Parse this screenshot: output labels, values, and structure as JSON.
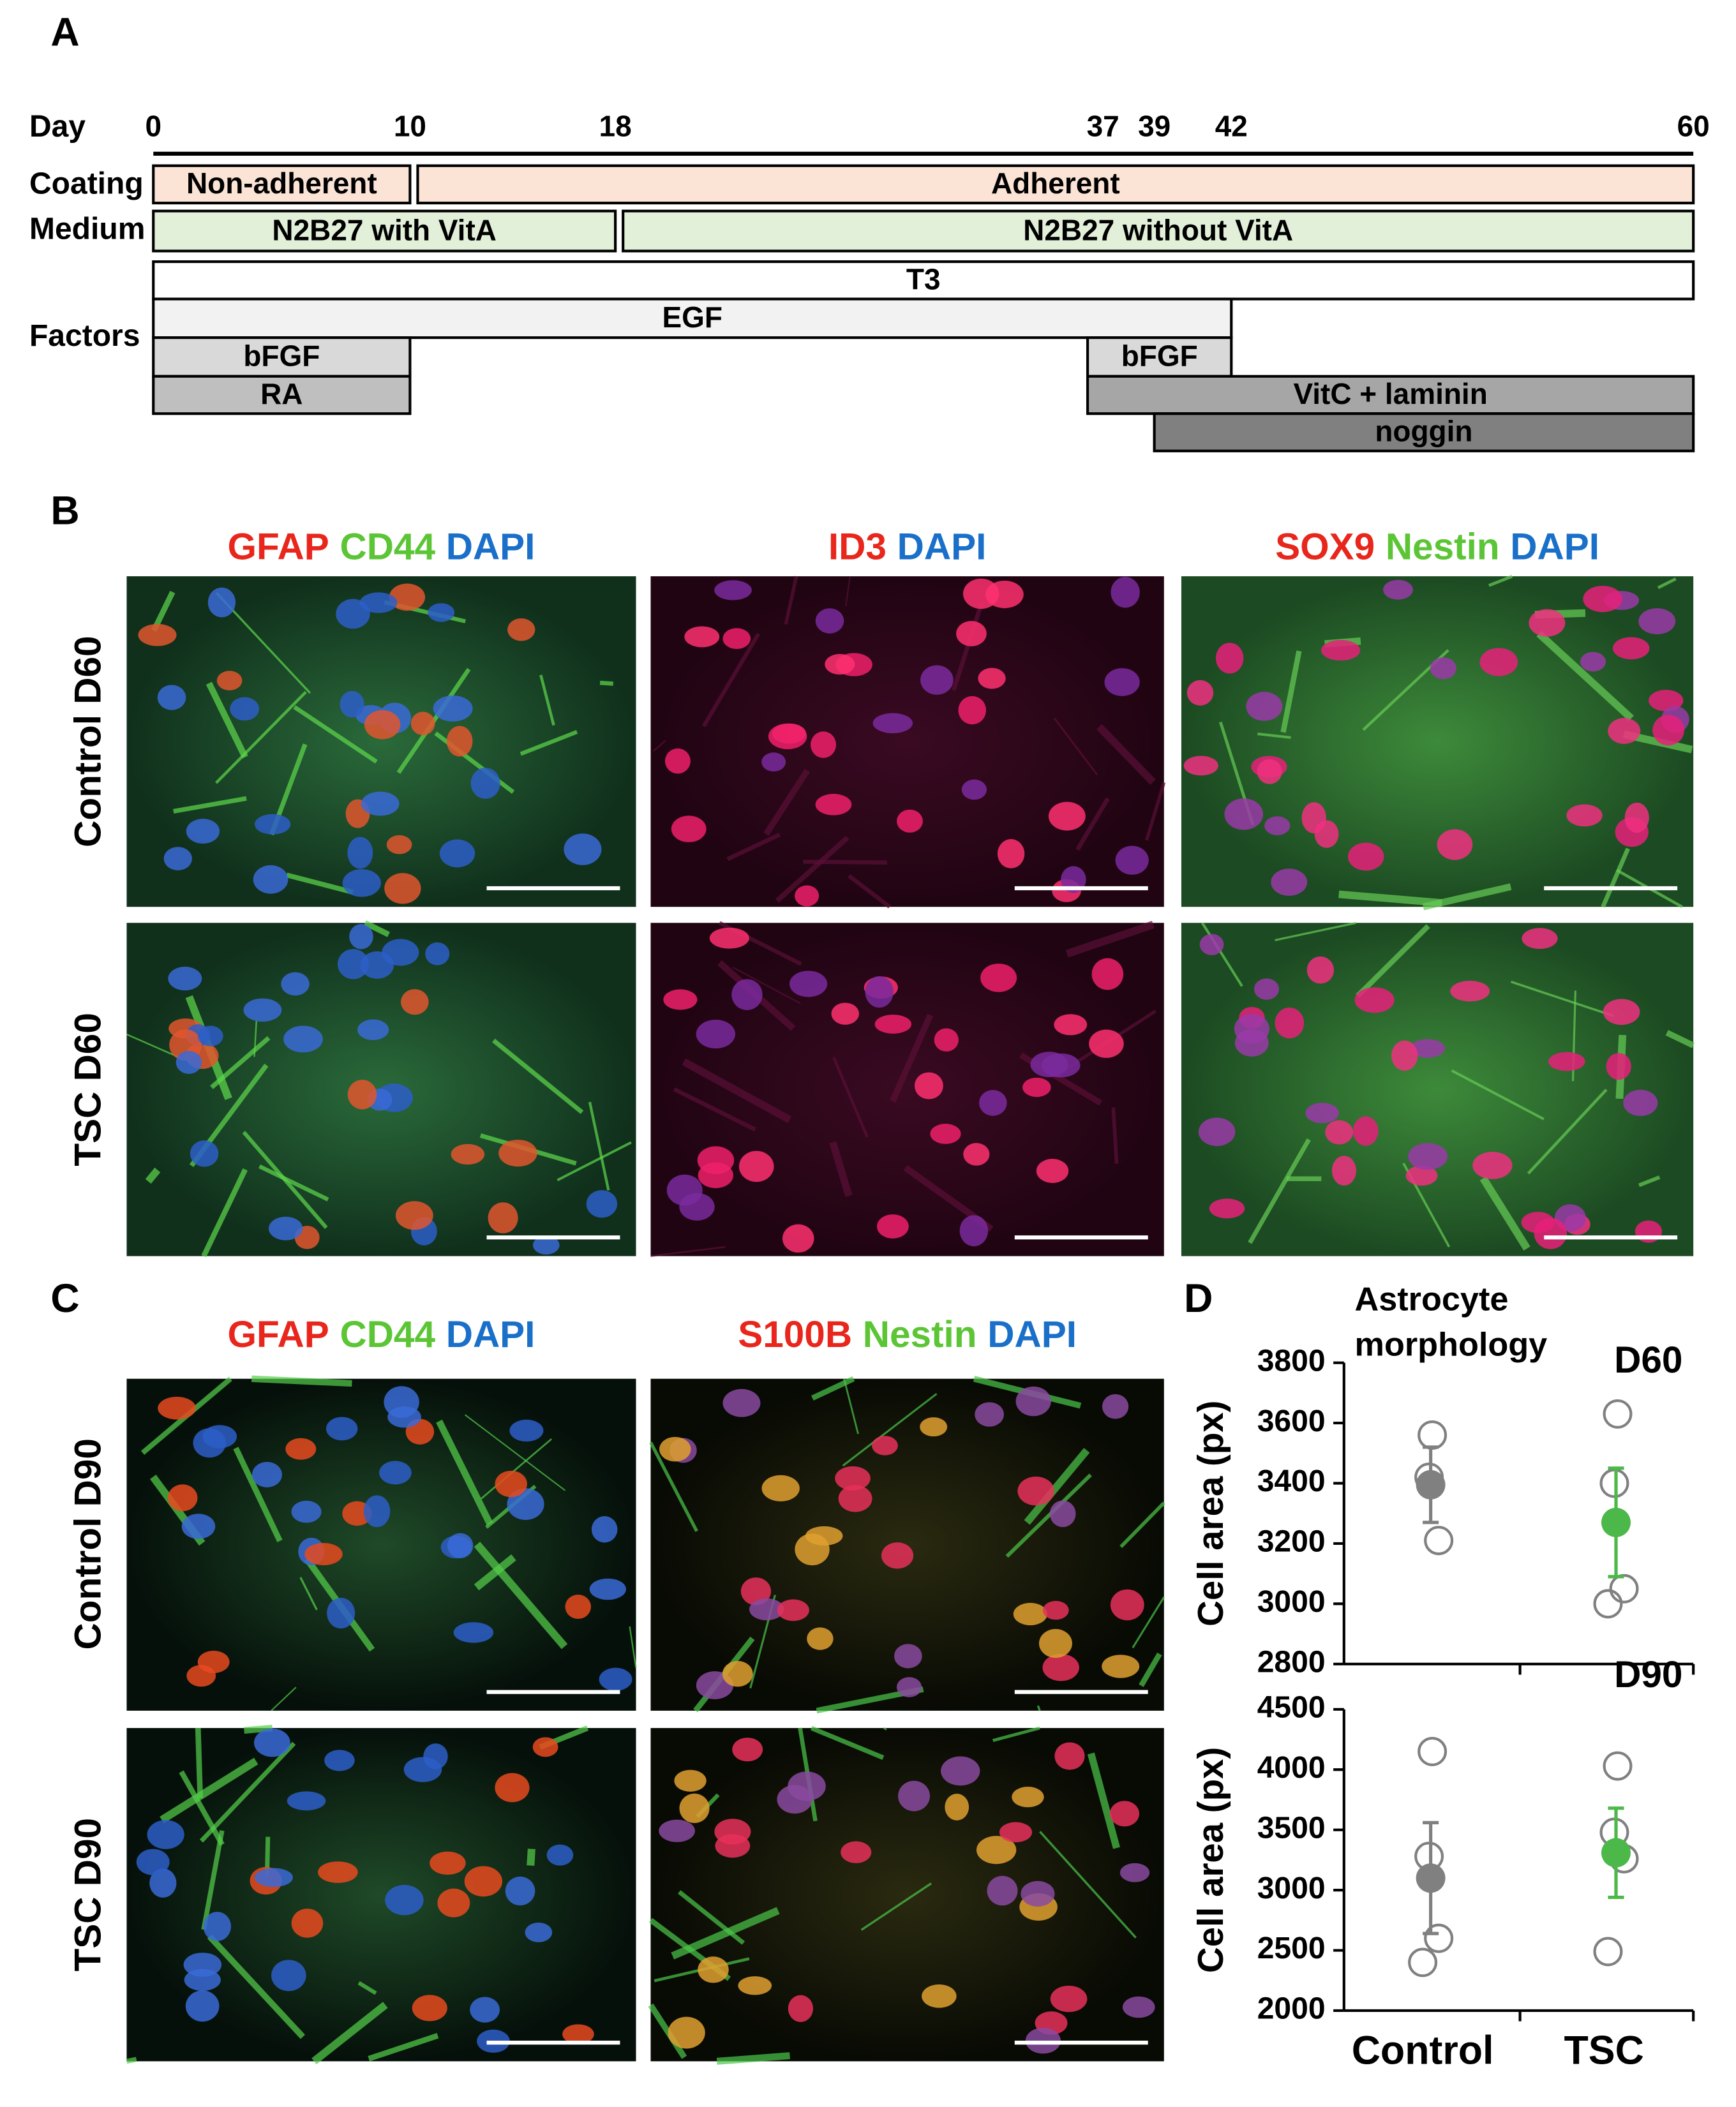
{
  "panel_a": {
    "label": "A",
    "day_label": "Day",
    "days": [
      0,
      10,
      18,
      37,
      39,
      42,
      60
    ],
    "xlim": [
      0,
      60
    ],
    "row_labels": {
      "coating": "Coating",
      "medium": "Medium",
      "factors": "Factors"
    },
    "bars": [
      {
        "text": "Non-adherent",
        "start": 0,
        "end": 10,
        "lane": 0,
        "color": "#fbe3d6"
      },
      {
        "text": "Adherent",
        "start": 10.3,
        "end": 60,
        "lane": 0,
        "color": "#fbe3d6"
      },
      {
        "text": "N2B27 with VitA",
        "start": 0,
        "end": 18,
        "lane": 1,
        "color": "#e2f0d9"
      },
      {
        "text": "N2B27 without VitA",
        "start": 18.3,
        "end": 60,
        "lane": 1,
        "color": "#e2f0d9"
      },
      {
        "text": "T3",
        "start": 0,
        "end": 60,
        "lane": 2,
        "color": "#ffffff"
      },
      {
        "text": "EGF",
        "start": 0,
        "end": 42,
        "lane": 3,
        "color": "#f2f2f2"
      },
      {
        "text": "bFGF",
        "start": 0,
        "end": 10,
        "lane": 4,
        "color": "#d9d9d9"
      },
      {
        "text": "bFGF",
        "start": 36.4,
        "end": 42,
        "lane": 4,
        "color": "#d9d9d9"
      },
      {
        "text": "RA",
        "start": 0,
        "end": 10,
        "lane": 5,
        "color": "#bfbfbf"
      },
      {
        "text": "VitC + laminin",
        "start": 36.4,
        "end": 60,
        "lane": 5,
        "color": "#a6a6a6"
      },
      {
        "text": "noggin",
        "start": 39,
        "end": 60,
        "lane": 6,
        "color": "#808080"
      }
    ]
  },
  "panel_b": {
    "label": "B",
    "columns": [
      [
        {
          "text": "GFAP",
          "color": "#e8261c"
        },
        {
          "text": "CD44",
          "color": "#5cc536"
        },
        {
          "text": "DAPI",
          "color": "#1a6fc9"
        }
      ],
      [
        {
          "text": "ID3",
          "color": "#e8261c"
        },
        {
          "text": "DAPI",
          "color": "#1a6fc9"
        }
      ],
      [
        {
          "text": "SOX9",
          "color": "#e8261c"
        },
        {
          "text": "Nestin",
          "color": "#5cc536"
        },
        {
          "text": "DAPI",
          "color": "#1a6fc9"
        }
      ]
    ],
    "rows": [
      "Control D60",
      "TSC D60"
    ]
  },
  "panel_c": {
    "label": "C",
    "columns": [
      [
        {
          "text": "GFAP",
          "color": "#e8261c"
        },
        {
          "text": "CD44",
          "color": "#5cc536"
        },
        {
          "text": "DAPI",
          "color": "#1a6fc9"
        }
      ],
      [
        {
          "text": "S100B",
          "color": "#e8261c"
        },
        {
          "text": "Nestin",
          "color": "#5cc536"
        },
        {
          "text": "DAPI",
          "color": "#1a6fc9"
        }
      ]
    ],
    "rows": [
      "Control D90",
      "TSC D90"
    ]
  },
  "panel_d": {
    "label": "D",
    "title_lines": [
      "Astrocyte",
      "morphology"
    ],
    "categories": [
      "Control",
      "TSC"
    ],
    "charts": [
      {
        "type": "scatter",
        "tag": "D60",
        "y_label": "Cell area (px)",
        "ylim": [
          2800,
          3800
        ],
        "yticks": [
          2800,
          3000,
          3200,
          3400,
          3600,
          3800
        ],
        "groups": [
          {
            "points": [
              3560,
              3420,
              3210
            ],
            "mean": 3395,
            "error": 125,
            "color": "#808080"
          },
          {
            "points": [
              3630,
              3400,
              3050,
              3000
            ],
            "mean": 3270,
            "error": 180,
            "color": "#4cb849"
          }
        ]
      },
      {
        "type": "scatter",
        "tag": "D90",
        "y_label": "Cell area (px)",
        "ylim": [
          2000,
          4500
        ],
        "yticks": [
          2000,
          2500,
          3000,
          3500,
          4000,
          4500
        ],
        "groups": [
          {
            "points": [
              4150,
              3280,
              2600,
              2400
            ],
            "mean": 3100,
            "error": 460,
            "color": "#808080"
          },
          {
            "points": [
              4030,
              3480,
              3260,
              2490
            ],
            "mean": 3310,
            "error": 370,
            "color": "#4cb849"
          }
        ]
      }
    ]
  }
}
